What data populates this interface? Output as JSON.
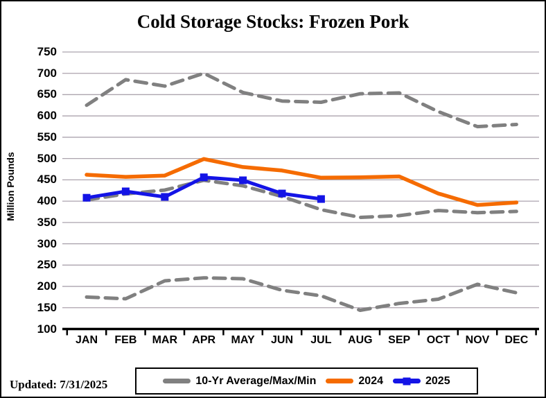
{
  "title": "Cold Storage Stocks: Frozen Pork",
  "updated": "Updated: 7/31/2025",
  "y_axis": {
    "label": "Million Pounds",
    "ticks": [
      750,
      700,
      650,
      600,
      550,
      500,
      450,
      400,
      350,
      300,
      250,
      200,
      150,
      100
    ]
  },
  "x_axis": {
    "categories": [
      "JAN",
      "FEB",
      "MAR",
      "APR",
      "MAY",
      "JUN",
      "JUL",
      "AUG",
      "SEP",
      "OCT",
      "NOV",
      "DEC"
    ]
  },
  "legend": {
    "items": [
      {
        "label": "10-Yr Average/Max/Min",
        "swatch": "gray-dash"
      },
      {
        "label": "2024",
        "swatch": "orange-line"
      },
      {
        "label": "2025",
        "swatch": "blue-line-square"
      }
    ]
  },
  "colors": {
    "gray": "#808080",
    "orange": "#f56b00",
    "blue": "#1414e6",
    "gridline": "#aba3ad",
    "axis": "#000000",
    "background": "#ffffff"
  },
  "chart_data": {
    "type": "line",
    "title": "Cold Storage Stocks: Frozen Pork",
    "xlabel": "",
    "ylabel": "Million Pounds",
    "ylim": [
      100,
      750
    ],
    "ytick_step": 50,
    "grid": true,
    "legend_position": "bottom",
    "categories": [
      "JAN",
      "FEB",
      "MAR",
      "APR",
      "MAY",
      "JUN",
      "JUL",
      "AUG",
      "SEP",
      "OCT",
      "NOV",
      "DEC"
    ],
    "series": [
      {
        "name": "10-Yr Max",
        "color_key": "gray",
        "dashed": true,
        "markers": false,
        "values": [
          625,
          685,
          670,
          700,
          655,
          635,
          632,
          652,
          654,
          610,
          575,
          580
        ]
      },
      {
        "name": "10-Yr Average",
        "color_key": "gray",
        "dashed": true,
        "markers": false,
        "values": [
          403,
          417,
          426,
          449,
          436,
          411,
          380,
          362,
          366,
          378,
          373,
          376
        ]
      },
      {
        "name": "10-Yr Min",
        "color_key": "gray",
        "dashed": true,
        "markers": false,
        "values": [
          175,
          171,
          213,
          220,
          218,
          191,
          178,
          144,
          160,
          170,
          205,
          185
        ]
      },
      {
        "name": "2024",
        "color_key": "orange",
        "dashed": false,
        "markers": false,
        "values": [
          462,
          457,
          460,
          499,
          480,
          472,
          455,
          456,
          458,
          418,
          391,
          397
        ]
      },
      {
        "name": "2025",
        "color_key": "blue",
        "dashed": false,
        "markers": true,
        "values": [
          408,
          423,
          410,
          456,
          449,
          418,
          405
        ]
      }
    ]
  }
}
